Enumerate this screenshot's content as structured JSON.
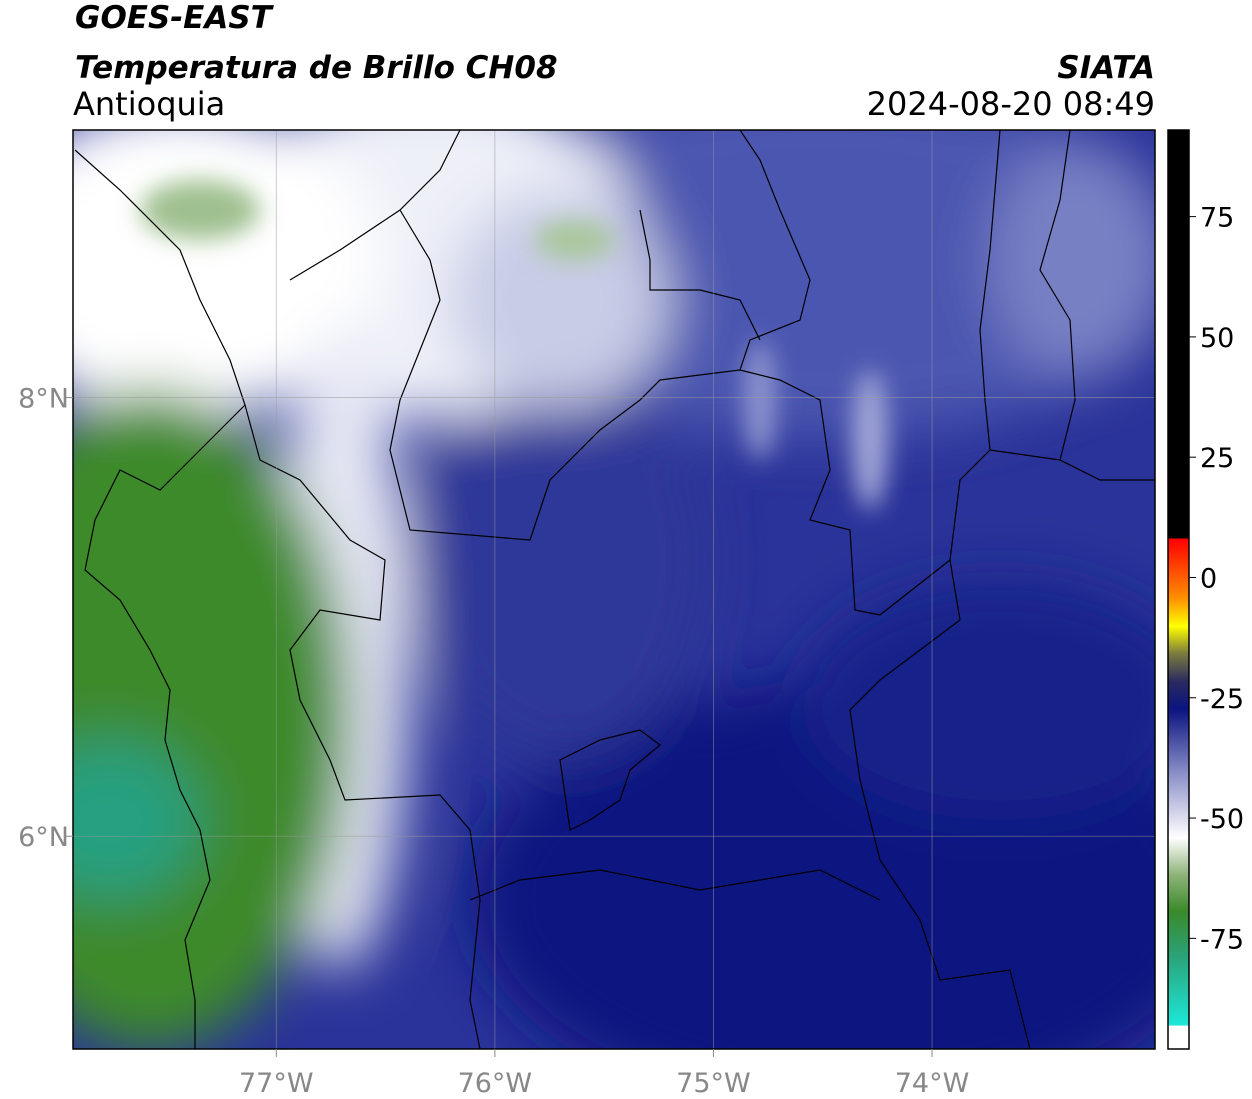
{
  "header": {
    "title": "GOES-EAST",
    "subtitle": "Temperatura de Brillo CH08",
    "region": "Antioquia",
    "source": "SIATA",
    "datetime": "2024-08-20 08:49"
  },
  "map": {
    "xlim": [
      -77.93,
      -72.98
    ],
    "ylim": [
      5.03,
      9.22
    ],
    "xticks": [
      {
        "value": -77,
        "label": "77°W"
      },
      {
        "value": -76,
        "label": "76°W"
      },
      {
        "value": -75,
        "label": "75°W"
      },
      {
        "value": -74,
        "label": "74°W"
      }
    ],
    "yticks": [
      {
        "value": 8,
        "label": "8°N"
      },
      {
        "value": 6,
        "label": "6°N"
      }
    ],
    "grid": true
  },
  "colorbar": {
    "lim": [
      -98,
      93
    ],
    "ticks": [
      -75,
      -50,
      -25,
      0,
      25,
      50,
      75
    ]
  }
}
